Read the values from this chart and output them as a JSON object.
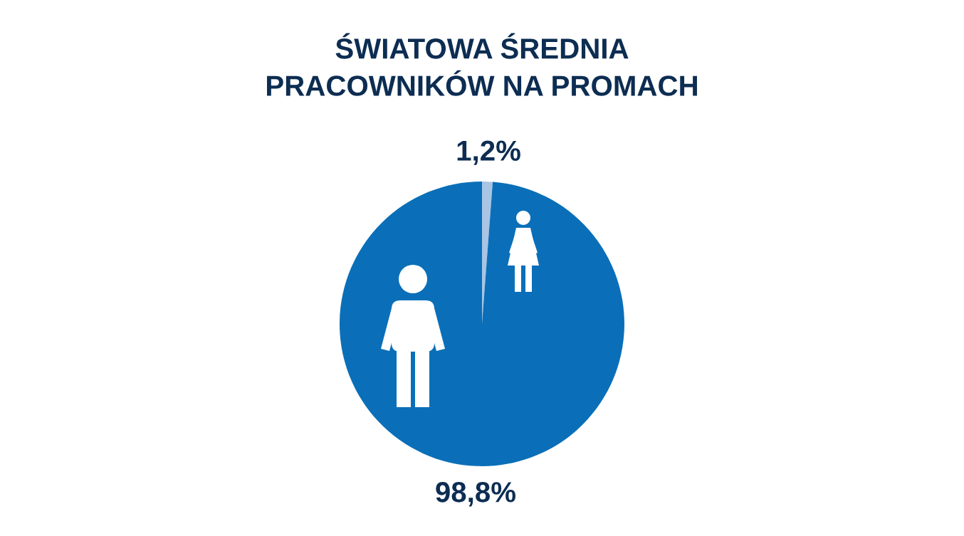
{
  "chart_data": {
    "type": "pie",
    "title": "ŚWIATOWA ŚREDNIA\nPRACOWNIKÓW NA PROMACH",
    "categories": [
      null,
      null
    ],
    "values": [
      1.2,
      98.8
    ],
    "colors": [
      "#a9c4e4",
      "#0a6fb8"
    ],
    "value_labels": [
      "1,2%",
      "98,8%"
    ]
  }
}
